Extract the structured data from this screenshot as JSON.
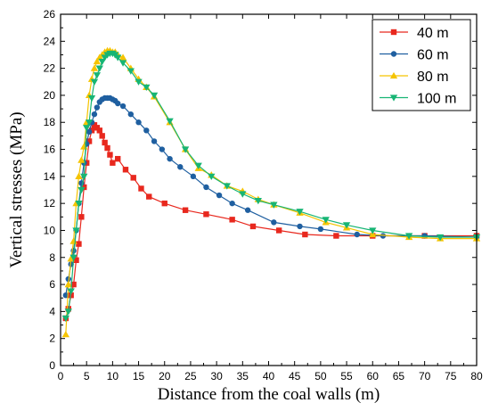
{
  "chart_data": {
    "type": "line",
    "xlabel": "Distance from the coal walls (m)",
    "ylabel": "Vertical stresses (MPa)",
    "xlim": [
      0,
      80
    ],
    "ylim": [
      0,
      26
    ],
    "xticks": [
      0,
      5,
      10,
      15,
      20,
      25,
      30,
      35,
      40,
      45,
      50,
      55,
      60,
      65,
      70,
      75,
      80
    ],
    "yticks": [
      0,
      2,
      4,
      6,
      8,
      10,
      12,
      14,
      16,
      18,
      20,
      22,
      24,
      26
    ],
    "grid": false,
    "legend_position": "top-right",
    "series": [
      {
        "name": "40 m",
        "color": "#e8281e",
        "marker": "square",
        "points": [
          [
            1.0,
            3.5
          ],
          [
            1.5,
            4.2
          ],
          [
            2.0,
            5.2
          ],
          [
            2.5,
            6.0
          ],
          [
            3.0,
            7.8
          ],
          [
            3.5,
            9.0
          ],
          [
            4.0,
            11.0
          ],
          [
            4.5,
            13.2
          ],
          [
            5.0,
            15.0
          ],
          [
            5.5,
            16.6
          ],
          [
            6.0,
            17.4
          ],
          [
            6.5,
            17.8
          ],
          [
            7.0,
            17.6
          ],
          [
            7.5,
            17.4
          ],
          [
            8.0,
            17.0
          ],
          [
            8.5,
            16.5
          ],
          [
            9.0,
            16.1
          ],
          [
            9.5,
            15.6
          ],
          [
            10.0,
            15.0
          ],
          [
            11.0,
            15.3
          ],
          [
            12.5,
            14.5
          ],
          [
            14.0,
            13.9
          ],
          [
            15.5,
            13.1
          ],
          [
            17.0,
            12.5
          ],
          [
            20.0,
            12.0
          ],
          [
            24.0,
            11.5
          ],
          [
            28.0,
            11.2
          ],
          [
            33.0,
            10.8
          ],
          [
            37.0,
            10.3
          ],
          [
            42.0,
            10.0
          ],
          [
            47.0,
            9.7
          ],
          [
            53.0,
            9.6
          ],
          [
            60.0,
            9.6
          ],
          [
            70.0,
            9.6
          ],
          [
            80.0,
            9.6
          ]
        ]
      },
      {
        "name": "60 m",
        "color": "#1f5fa0",
        "marker": "circle",
        "points": [
          [
            1.0,
            5.2
          ],
          [
            1.5,
            6.4
          ],
          [
            2.0,
            7.5
          ],
          [
            2.5,
            8.5
          ],
          [
            3.0,
            10.0
          ],
          [
            3.5,
            12.0
          ],
          [
            4.0,
            13.5
          ],
          [
            4.5,
            15.0
          ],
          [
            5.0,
            16.4
          ],
          [
            5.5,
            17.3
          ],
          [
            6.0,
            18.0
          ],
          [
            6.5,
            18.6
          ],
          [
            7.0,
            19.1
          ],
          [
            7.5,
            19.5
          ],
          [
            8.0,
            19.7
          ],
          [
            8.5,
            19.8
          ],
          [
            9.0,
            19.8
          ],
          [
            9.5,
            19.8
          ],
          [
            10.0,
            19.7
          ],
          [
            10.5,
            19.6
          ],
          [
            11.0,
            19.4
          ],
          [
            12.0,
            19.2
          ],
          [
            13.5,
            18.6
          ],
          [
            15.0,
            18.0
          ],
          [
            16.5,
            17.4
          ],
          [
            18.0,
            16.6
          ],
          [
            19.5,
            16.0
          ],
          [
            21.0,
            15.3
          ],
          [
            23.0,
            14.7
          ],
          [
            25.5,
            14.0
          ],
          [
            28.0,
            13.2
          ],
          [
            30.5,
            12.6
          ],
          [
            33.0,
            12.0
          ],
          [
            36.0,
            11.5
          ],
          [
            41.0,
            10.6
          ],
          [
            46.0,
            10.3
          ],
          [
            50.0,
            10.1
          ],
          [
            57.0,
            9.7
          ],
          [
            62.0,
            9.6
          ],
          [
            67.0,
            9.6
          ],
          [
            70.0,
            9.6
          ],
          [
            80.0,
            9.5
          ]
        ]
      },
      {
        "name": "80 m",
        "color": "#f5c400",
        "marker": "triangle-up",
        "points": [
          [
            1.0,
            2.3
          ],
          [
            1.5,
            6.0
          ],
          [
            2.0,
            7.9
          ],
          [
            2.5,
            9.2
          ],
          [
            3.0,
            12.0
          ],
          [
            3.5,
            14.0
          ],
          [
            4.0,
            15.2
          ],
          [
            4.5,
            16.2
          ],
          [
            5.0,
            18.0
          ],
          [
            5.5,
            20.0
          ],
          [
            6.0,
            21.2
          ],
          [
            6.5,
            22.0
          ],
          [
            7.0,
            22.5
          ],
          [
            7.5,
            22.8
          ],
          [
            8.0,
            23.0
          ],
          [
            8.5,
            23.2
          ],
          [
            9.0,
            23.3
          ],
          [
            9.5,
            23.3
          ],
          [
            10.0,
            23.2
          ],
          [
            10.5,
            23.2
          ],
          [
            11.0,
            23.0
          ],
          [
            12.0,
            22.8
          ],
          [
            13.5,
            22.0
          ],
          [
            15.0,
            21.2
          ],
          [
            16.5,
            20.6
          ],
          [
            18.0,
            19.9
          ],
          [
            21.0,
            18.0
          ],
          [
            24.0,
            16.0
          ],
          [
            26.5,
            14.6
          ],
          [
            29.0,
            14.1
          ],
          [
            32.0,
            13.3
          ],
          [
            35.0,
            12.9
          ],
          [
            38.0,
            12.3
          ],
          [
            41.0,
            11.9
          ],
          [
            46.0,
            11.3
          ],
          [
            51.0,
            10.6
          ],
          [
            55.0,
            10.2
          ],
          [
            60.0,
            9.7
          ],
          [
            67.0,
            9.5
          ],
          [
            73.0,
            9.4
          ],
          [
            80.0,
            9.4
          ]
        ]
      },
      {
        "name": "100 m",
        "color": "#17b574",
        "marker": "triangle-down",
        "points": [
          [
            1.0,
            3.5
          ],
          [
            1.5,
            4.0
          ],
          [
            2.0,
            5.5
          ],
          [
            2.5,
            8.0
          ],
          [
            3.0,
            10.0
          ],
          [
            3.5,
            12.0
          ],
          [
            4.0,
            13.0
          ],
          [
            4.5,
            14.0
          ],
          [
            5.0,
            17.6
          ],
          [
            5.5,
            18.0
          ],
          [
            6.0,
            19.8
          ],
          [
            6.5,
            21.0
          ],
          [
            7.0,
            21.5
          ],
          [
            7.5,
            22.0
          ],
          [
            8.0,
            22.5
          ],
          [
            8.5,
            22.8
          ],
          [
            9.0,
            23.0
          ],
          [
            9.5,
            23.1
          ],
          [
            10.0,
            23.1
          ],
          [
            10.5,
            23.0
          ],
          [
            11.0,
            22.8
          ],
          [
            12.0,
            22.4
          ],
          [
            13.5,
            21.8
          ],
          [
            15.0,
            21.0
          ],
          [
            16.5,
            20.6
          ],
          [
            18.0,
            20.0
          ],
          [
            21.0,
            18.1
          ],
          [
            24.0,
            16.0
          ],
          [
            26.5,
            14.8
          ],
          [
            29.0,
            14.0
          ],
          [
            32.0,
            13.3
          ],
          [
            35.0,
            12.7
          ],
          [
            38.0,
            12.2
          ],
          [
            41.0,
            11.9
          ],
          [
            46.0,
            11.4
          ],
          [
            51.0,
            10.8
          ],
          [
            55.0,
            10.4
          ],
          [
            60.0,
            10.0
          ],
          [
            67.0,
            9.6
          ],
          [
            73.0,
            9.5
          ],
          [
            80.0,
            9.5
          ]
        ]
      }
    ]
  }
}
